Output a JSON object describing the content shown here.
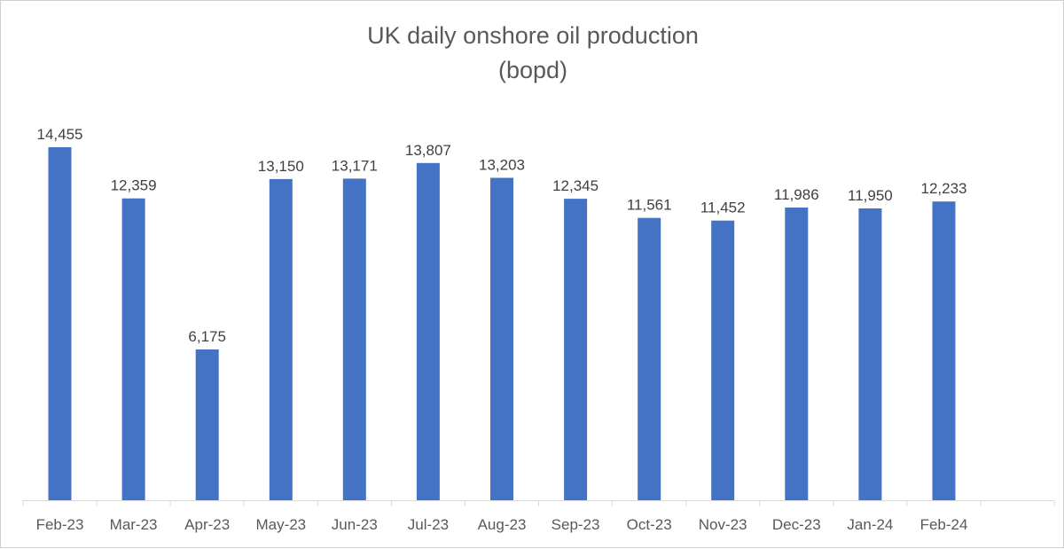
{
  "chart_data": {
    "type": "bar",
    "title": "UK daily onshore oil production",
    "subtitle": "(bopd)",
    "xlabel": "",
    "ylabel": "",
    "categories": [
      "Feb-23",
      "Mar-23",
      "Apr-23",
      "May-23",
      "Jun-23",
      "Jul-23",
      "Aug-23",
      "Sep-23",
      "Oct-23",
      "Nov-23",
      "Dec-23",
      "Jan-24",
      "Feb-24"
    ],
    "values": [
      14455,
      12359,
      6175,
      13150,
      13171,
      13807,
      13203,
      12345,
      11561,
      11452,
      11986,
      11950,
      12233
    ],
    "data_labels": [
      "14,455",
      "12,359",
      "6,175",
      "13,150",
      "13,171",
      "13,807",
      "13,203",
      "12,345",
      "11,561",
      "11,452",
      "11,986",
      "11,950",
      "12,233"
    ],
    "ylim": [
      0,
      14455
    ],
    "grid": false,
    "legend": "none",
    "bar_color": "#4472C4"
  }
}
